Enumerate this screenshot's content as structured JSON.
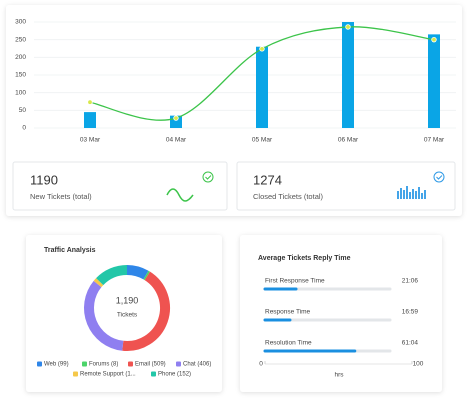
{
  "chart_data": [
    {
      "type": "combo",
      "categories": [
        "03 Mar",
        "04 Mar",
        "05 Mar",
        "06 Mar",
        "07 Mar"
      ],
      "series": [
        {
          "type": "bar",
          "color": "#0aa5e6",
          "values": [
            45,
            35,
            230,
            300,
            265
          ]
        },
        {
          "type": "line",
          "color": "#3cc44a",
          "values": [
            73,
            28,
            224,
            286,
            250
          ]
        }
      ],
      "ylim": [
        0,
        300
      ],
      "yticks": [
        0,
        50,
        100,
        150,
        200,
        250,
        300
      ],
      "grid": true
    },
    {
      "type": "donut",
      "title": "Traffic Analysis",
      "center_label": "1,190",
      "center_sublabel": "Tickets",
      "categories": [
        "Web (99)",
        "Forums (8)",
        "Email (509)",
        "Chat (406)",
        "Remote Support (1...",
        "Phone (152)"
      ],
      "values": [
        99,
        8,
        509,
        406,
        16,
        152
      ],
      "colors": [
        "#2f86e8",
        "#4cd46a",
        "#ef5350",
        "#8f7ff0",
        "#f5c84a",
        "#22c7a8"
      ]
    },
    {
      "type": "hbar",
      "title": "Average Tickets Reply Time",
      "categories": [
        "First Response Time",
        "Response Time",
        "Resolution Time"
      ],
      "values": [
        21.1,
        16.98,
        61.07
      ],
      "value_labels": [
        "21:06",
        "16:59",
        "61:04"
      ],
      "color": "#1a8fe0",
      "xlim": [
        0,
        100
      ],
      "xticks": [
        0,
        100
      ],
      "xlabel": "hrs"
    }
  ],
  "stats": [
    {
      "value": 1190,
      "label": "New Tickets (total)"
    },
    {
      "value": 1274,
      "label": "Closed Tickets (total)"
    }
  ]
}
